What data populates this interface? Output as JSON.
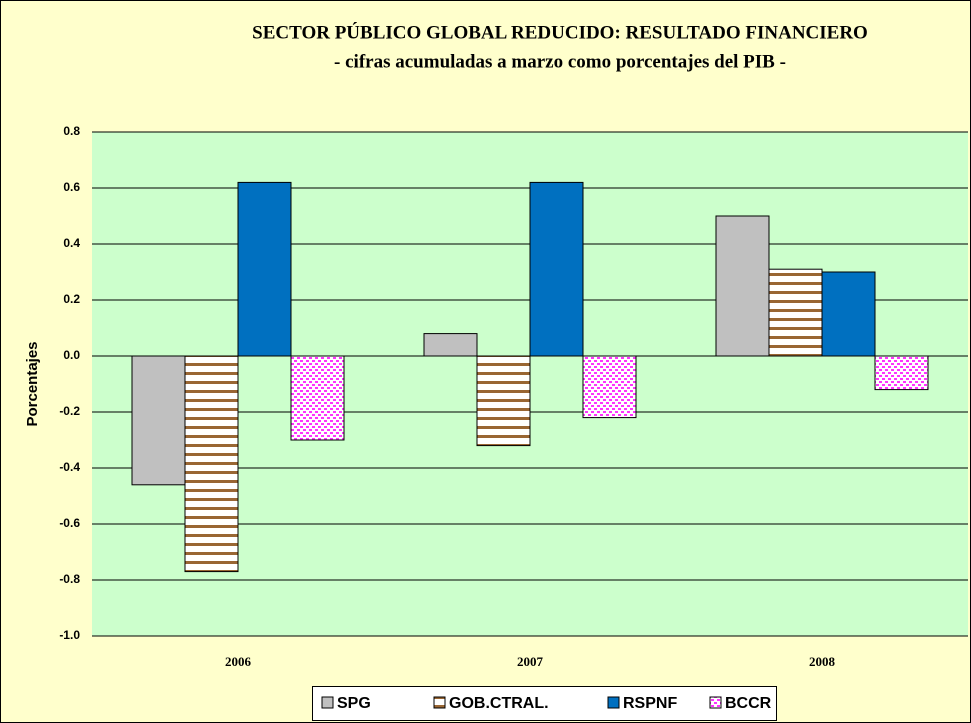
{
  "chart_data": {
    "type": "bar",
    "title": "SECTOR PÚBLICO GLOBAL REDUCIDO: RESULTADO FINANCIERO",
    "subtitle": "- cifras acumuladas a marzo como porcentajes del PIB -",
    "y_label": "Porcentajes",
    "categories": [
      "2006",
      "2007",
      "2008"
    ],
    "series": [
      {
        "name": "SPG",
        "color": "#c0c0c0",
        "pattern": "solid",
        "values": [
          -0.46,
          0.08,
          0.5
        ]
      },
      {
        "name": "GOB.CTRAL.",
        "color": "#996633",
        "pattern": "horizontal-lines",
        "values": [
          -0.77,
          -0.32,
          0.31
        ]
      },
      {
        "name": "RSPNF",
        "color": "#0070c0",
        "pattern": "solid",
        "values": [
          0.62,
          0.62,
          0.3
        ]
      },
      {
        "name": "BCCR",
        "color": "#ff33ff",
        "pattern": "dots",
        "values": [
          -0.3,
          -0.22,
          -0.12
        ]
      }
    ],
    "ylim": [
      -1.0,
      0.8
    ],
    "yticks": [
      {
        "value": -1,
        "label": "-1.0"
      },
      -0.8,
      -0.6,
      -0.4,
      -0.2,
      {
        "value": 0,
        "label": "0.0"
      },
      0.2,
      0.4,
      0.6,
      0.8
    ],
    "grid": true,
    "legend": "bottom"
  }
}
